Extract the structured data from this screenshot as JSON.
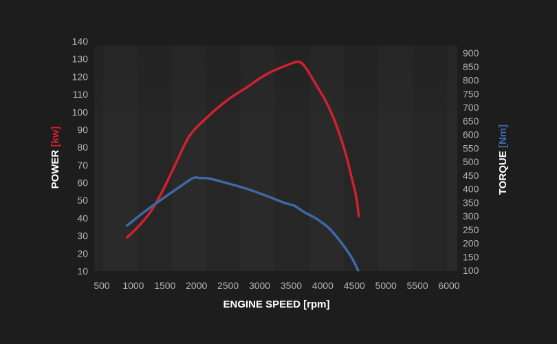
{
  "chart_data": {
    "type": "line",
    "xlabel": "ENGINE SPEED [rpm]",
    "xlim": [
      500,
      6000
    ],
    "xticks": [
      500,
      1000,
      1500,
      2000,
      2500,
      3000,
      3500,
      4000,
      4500,
      5000,
      5500,
      6000
    ],
    "ylabel_left": {
      "text": "POWER ",
      "unit": "[kw]"
    },
    "ylabel_right": {
      "text": "TORQUE ",
      "unit": "[Nm]"
    },
    "ylim_left": [
      10,
      140
    ],
    "yticks_left": [
      10,
      20,
      30,
      40,
      50,
      60,
      70,
      80,
      90,
      100,
      110,
      120,
      130,
      140
    ],
    "ylim_right": [
      100,
      900
    ],
    "yticks_right": [
      100,
      150,
      200,
      250,
      300,
      350,
      400,
      450,
      500,
      550,
      600,
      650,
      700,
      750,
      800,
      850,
      900
    ],
    "grid": false,
    "series": [
      {
        "axis": "left",
        "color": "#d3202e",
        "x": [
          900,
          1100,
          1300,
          1500,
          1700,
          1900,
          2200,
          2500,
          2800,
          3000,
          3200,
          3400,
          3550,
          3650,
          3750,
          3900,
          4050,
          4200,
          4350,
          4450,
          4530,
          4570
        ],
        "y": [
          29,
          36,
          45,
          58,
          73,
          87,
          98,
          107,
          114,
          119,
          123,
          126,
          128,
          128,
          124,
          115,
          106,
          94,
          78,
          64,
          52,
          41
        ]
      },
      {
        "axis": "right",
        "color": "#3d6aa6",
        "x": [
          900,
          1200,
          1500,
          1750,
          1950,
          2050,
          2200,
          2500,
          2800,
          3100,
          3400,
          3550,
          3700,
          3900,
          4100,
          4300,
          4450,
          4560
        ],
        "y": [
          265,
          320,
          370,
          410,
          440,
          440,
          438,
          420,
          400,
          375,
          348,
          338,
          315,
          290,
          255,
          200,
          150,
          100
        ]
      }
    ]
  }
}
